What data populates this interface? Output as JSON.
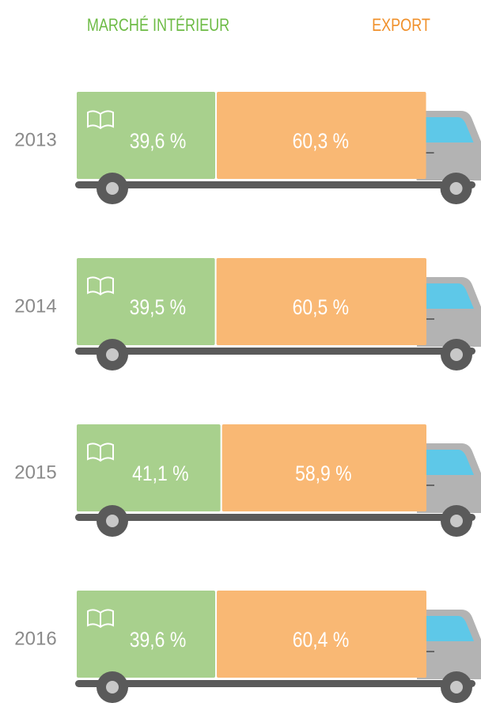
{
  "chart_data": {
    "type": "bar",
    "orientation": "horizontal",
    "stacked": true,
    "categories": [
      "2013",
      "2014",
      "2015",
      "2016"
    ],
    "xlim": [
      0,
      100
    ],
    "series": [
      {
        "name": "MARCHÉ INTÉRIEUR",
        "color": "#a8d08d",
        "values": [
          39.6,
          39.5,
          41.1,
          39.6
        ],
        "value_labels": [
          "39,6 %",
          "39,5 %",
          "41,1 %",
          "39,6 %"
        ]
      },
      {
        "name": "EXPORT",
        "color": "#f9b874",
        "values": [
          60.3,
          60.5,
          58.9,
          60.4
        ],
        "value_labels": [
          "60,3 %",
          "60,5 %",
          "58,9 %",
          "60,4 %"
        ]
      }
    ]
  }
}
